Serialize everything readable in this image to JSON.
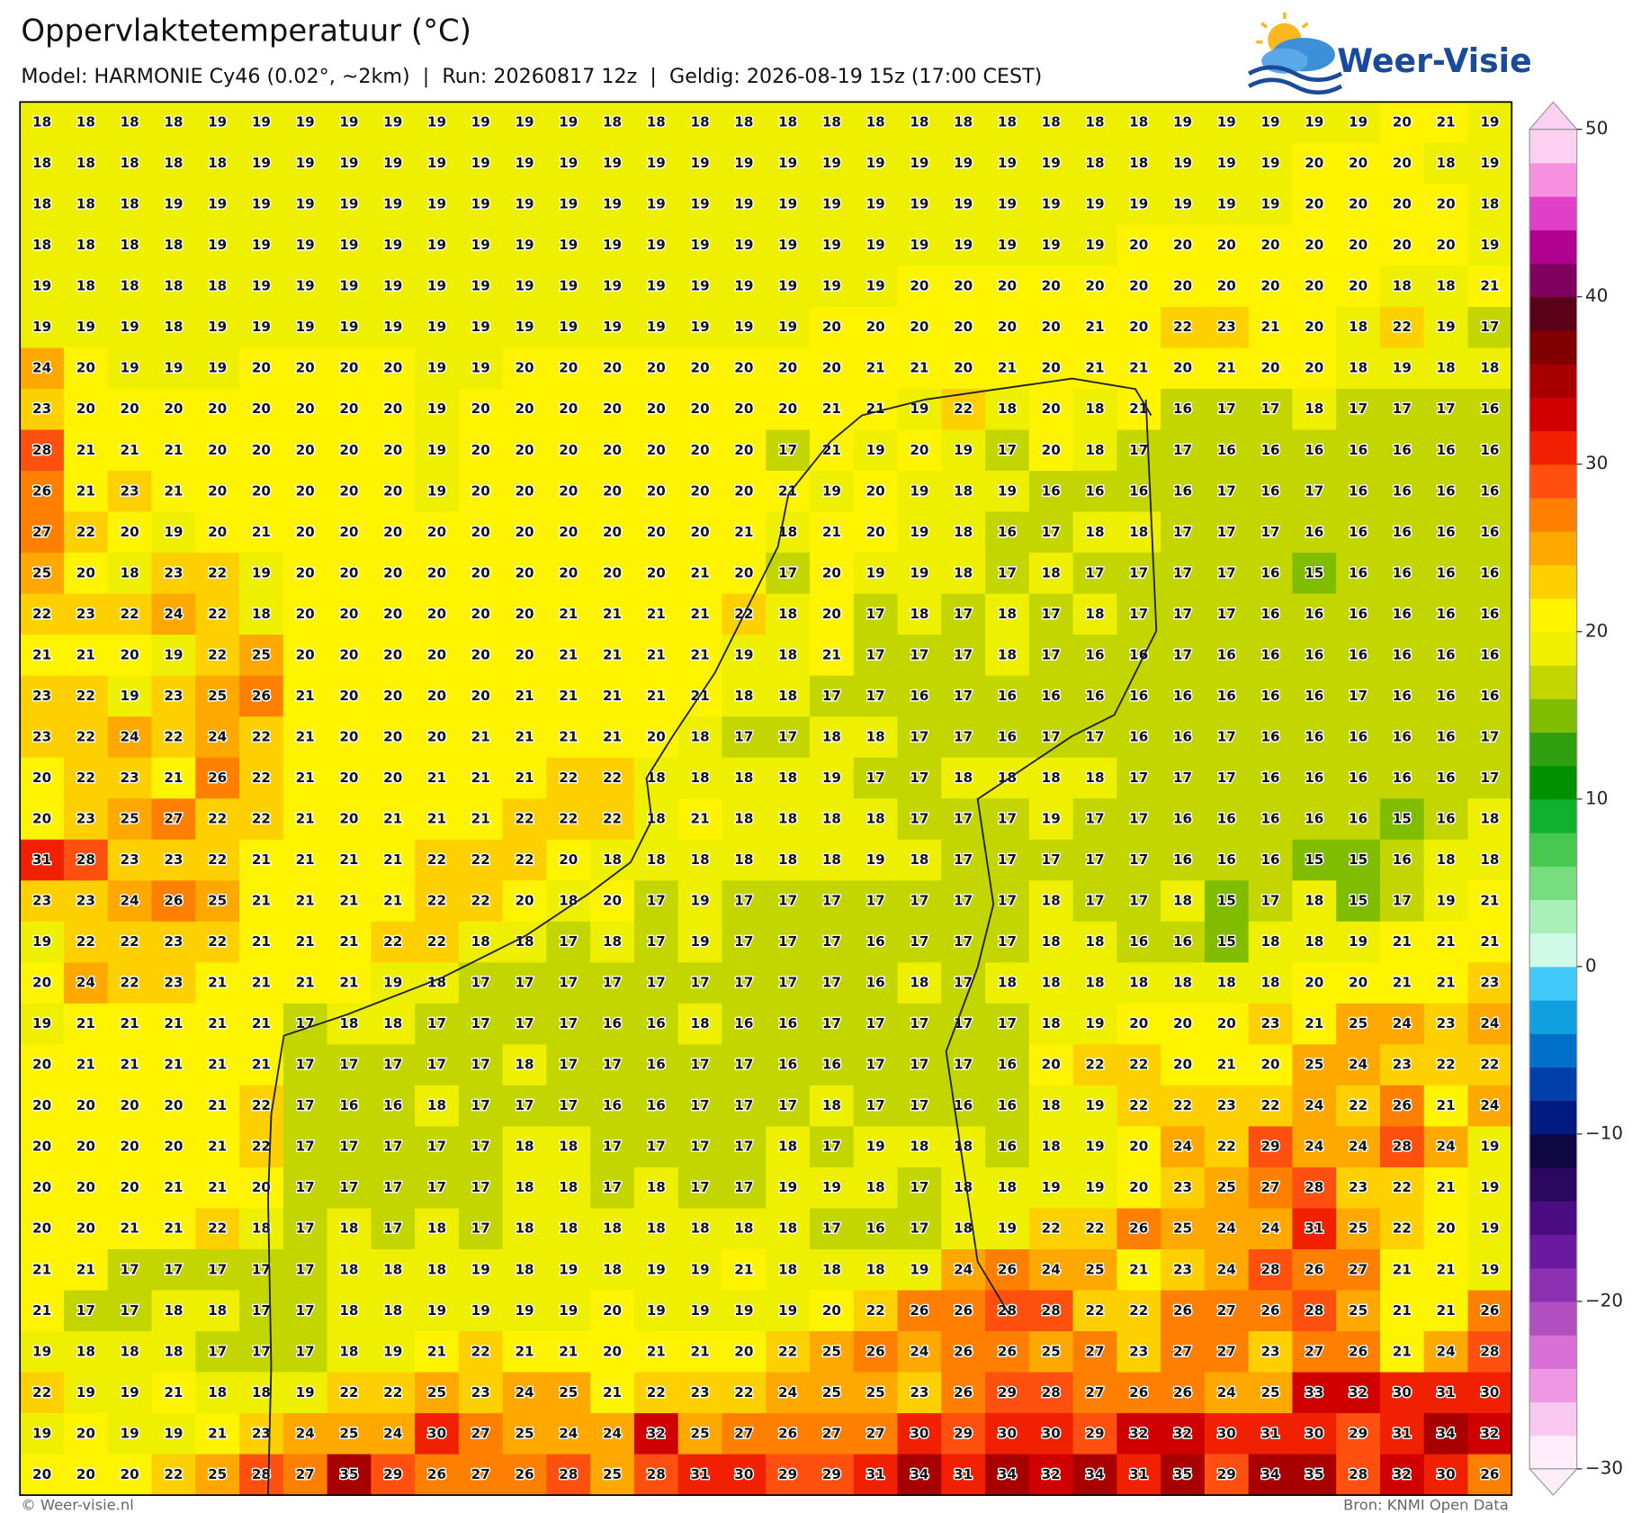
{
  "header": {
    "title": "Oppervlaktetemperatuur (°C)",
    "subtitle": "Model: HARMONIE Cy46 (0.02°, ~2km)  |  Run: 20260817 12z  |  Geldig: 2026-08-19 15z (17:00 CEST)",
    "logo": "Weer-Visie"
  },
  "grid": {
    "rows": [
      [
        18,
        18,
        18,
        18,
        19,
        19,
        19,
        19,
        19,
        19,
        19,
        19,
        19,
        18,
        18,
        18,
        18,
        18,
        18,
        18,
        18,
        18,
        18,
        18,
        18,
        18,
        19,
        19,
        19,
        19,
        19,
        20,
        21,
        19
      ],
      [
        18,
        18,
        18,
        18,
        18,
        19,
        19,
        19,
        19,
        19,
        19,
        19,
        19,
        19,
        19,
        19,
        19,
        19,
        19,
        19,
        19,
        19,
        19,
        19,
        18,
        18,
        19,
        19,
        19,
        20,
        20,
        20,
        18,
        19
      ],
      [
        18,
        18,
        18,
        19,
        19,
        19,
        19,
        19,
        19,
        19,
        19,
        19,
        19,
        19,
        19,
        19,
        19,
        19,
        19,
        19,
        19,
        19,
        19,
        19,
        19,
        19,
        19,
        19,
        19,
        20,
        20,
        20,
        20,
        18
      ],
      [
        18,
        18,
        18,
        18,
        19,
        19,
        19,
        19,
        19,
        19,
        19,
        19,
        19,
        19,
        19,
        19,
        19,
        19,
        19,
        19,
        19,
        19,
        19,
        19,
        19,
        20,
        20,
        20,
        20,
        20,
        20,
        20,
        20,
        19
      ],
      [
        19,
        18,
        18,
        18,
        18,
        19,
        19,
        19,
        19,
        19,
        19,
        19,
        19,
        19,
        19,
        19,
        19,
        19,
        19,
        19,
        20,
        20,
        20,
        20,
        20,
        20,
        20,
        20,
        20,
        20,
        20,
        18,
        18,
        21
      ],
      [
        19,
        19,
        19,
        18,
        19,
        19,
        19,
        19,
        19,
        19,
        19,
        19,
        19,
        19,
        19,
        19,
        19,
        19,
        20,
        20,
        20,
        20,
        20,
        20,
        21,
        20,
        22,
        23,
        21,
        20,
        18,
        22,
        19,
        17
      ],
      [
        24,
        20,
        19,
        19,
        19,
        20,
        20,
        20,
        20,
        19,
        19,
        20,
        20,
        20,
        20,
        20,
        20,
        20,
        20,
        21,
        21,
        20,
        21,
        20,
        21,
        21,
        20,
        21,
        20,
        20,
        18,
        19,
        18,
        18
      ],
      [
        23,
        20,
        20,
        20,
        20,
        20,
        20,
        20,
        20,
        19,
        20,
        20,
        20,
        20,
        20,
        20,
        20,
        20,
        21,
        21,
        19,
        22,
        18,
        20,
        18,
        21,
        16,
        17,
        17,
        18,
        17,
        17,
        17,
        16
      ],
      [
        28,
        21,
        21,
        21,
        20,
        20,
        20,
        20,
        20,
        19,
        20,
        20,
        20,
        20,
        20,
        20,
        20,
        17,
        21,
        19,
        20,
        19,
        17,
        20,
        18,
        17,
        17,
        16,
        16,
        16,
        16,
        16,
        16,
        16
      ],
      [
        26,
        21,
        23,
        21,
        20,
        20,
        20,
        20,
        20,
        19,
        20,
        20,
        20,
        20,
        20,
        20,
        20,
        21,
        19,
        20,
        19,
        18,
        19,
        16,
        16,
        16,
        16,
        17,
        16,
        17,
        16,
        16,
        16,
        16
      ],
      [
        27,
        22,
        20,
        19,
        20,
        21,
        20,
        20,
        20,
        20,
        20,
        20,
        20,
        20,
        20,
        20,
        21,
        18,
        21,
        20,
        19,
        18,
        16,
        17,
        18,
        18,
        17,
        17,
        17,
        16,
        16,
        16,
        16,
        16
      ],
      [
        25,
        20,
        18,
        23,
        22,
        19,
        20,
        20,
        20,
        20,
        20,
        20,
        20,
        20,
        20,
        21,
        20,
        17,
        20,
        19,
        19,
        18,
        17,
        18,
        17,
        17,
        17,
        17,
        16,
        15,
        16,
        16,
        16,
        16
      ],
      [
        22,
        23,
        22,
        24,
        22,
        18,
        20,
        20,
        20,
        20,
        20,
        20,
        21,
        21,
        21,
        21,
        22,
        18,
        20,
        17,
        18,
        17,
        18,
        17,
        18,
        17,
        17,
        17,
        16,
        16,
        16,
        16,
        16,
        16
      ],
      [
        21,
        21,
        20,
        19,
        22,
        25,
        20,
        20,
        20,
        20,
        20,
        20,
        21,
        21,
        21,
        21,
        19,
        18,
        21,
        17,
        17,
        17,
        18,
        17,
        16,
        16,
        17,
        16,
        16,
        16,
        16,
        16,
        16,
        16
      ],
      [
        23,
        22,
        19,
        23,
        25,
        26,
        21,
        20,
        20,
        20,
        20,
        21,
        21,
        21,
        21,
        21,
        18,
        18,
        17,
        17,
        16,
        17,
        16,
        16,
        16,
        16,
        16,
        16,
        16,
        16,
        17,
        16,
        16,
        16
      ],
      [
        23,
        22,
        24,
        22,
        24,
        22,
        21,
        20,
        20,
        20,
        21,
        21,
        21,
        21,
        20,
        18,
        17,
        17,
        18,
        18,
        17,
        17,
        16,
        17,
        17,
        16,
        16,
        17,
        16,
        16,
        16,
        16,
        16,
        17
      ],
      [
        20,
        22,
        23,
        21,
        26,
        22,
        21,
        20,
        20,
        21,
        21,
        21,
        22,
        22,
        18,
        18,
        18,
        18,
        19,
        17,
        17,
        18,
        18,
        18,
        18,
        17,
        17,
        17,
        16,
        16,
        16,
        16,
        16,
        17
      ],
      [
        20,
        23,
        25,
        27,
        22,
        22,
        21,
        20,
        21,
        21,
        21,
        22,
        22,
        22,
        18,
        21,
        18,
        18,
        18,
        18,
        17,
        17,
        17,
        19,
        17,
        17,
        16,
        16,
        16,
        16,
        16,
        15,
        16,
        18
      ],
      [
        31,
        28,
        23,
        23,
        22,
        21,
        21,
        21,
        21,
        22,
        22,
        22,
        20,
        18,
        18,
        18,
        18,
        18,
        18,
        19,
        18,
        17,
        17,
        17,
        17,
        17,
        16,
        16,
        16,
        15,
        15,
        16,
        18,
        18
      ],
      [
        23,
        23,
        24,
        26,
        25,
        21,
        21,
        21,
        21,
        22,
        22,
        20,
        18,
        20,
        17,
        19,
        17,
        17,
        17,
        17,
        17,
        17,
        17,
        18,
        17,
        17,
        18,
        15,
        17,
        18,
        15,
        17,
        19,
        21
      ],
      [
        19,
        22,
        22,
        23,
        22,
        21,
        21,
        21,
        22,
        22,
        18,
        18,
        17,
        18,
        17,
        19,
        17,
        17,
        17,
        16,
        17,
        17,
        17,
        18,
        18,
        16,
        16,
        15,
        18,
        18,
        19,
        21,
        21,
        21
      ],
      [
        20,
        24,
        22,
        23,
        21,
        21,
        21,
        21,
        19,
        18,
        17,
        17,
        17,
        17,
        17,
        17,
        17,
        17,
        17,
        16,
        18,
        17,
        18,
        18,
        18,
        18,
        18,
        18,
        18,
        20,
        20,
        21,
        21,
        23
      ],
      [
        19,
        21,
        21,
        21,
        21,
        21,
        17,
        18,
        18,
        17,
        17,
        17,
        17,
        16,
        16,
        18,
        16,
        16,
        17,
        17,
        17,
        17,
        17,
        18,
        19,
        20,
        20,
        20,
        23,
        21,
        25,
        24,
        23,
        24
      ],
      [
        20,
        21,
        21,
        21,
        21,
        21,
        17,
        17,
        17,
        17,
        17,
        18,
        17,
        17,
        16,
        17,
        17,
        16,
        16,
        17,
        17,
        17,
        16,
        20,
        22,
        22,
        20,
        21,
        20,
        25,
        24,
        23,
        22,
        22
      ],
      [
        20,
        20,
        20,
        20,
        21,
        22,
        17,
        16,
        16,
        18,
        17,
        17,
        17,
        16,
        16,
        17,
        17,
        17,
        18,
        17,
        17,
        16,
        16,
        18,
        19,
        22,
        22,
        23,
        22,
        24,
        22,
        26,
        21,
        24
      ],
      [
        20,
        20,
        20,
        20,
        21,
        22,
        17,
        17,
        17,
        17,
        17,
        18,
        18,
        17,
        17,
        17,
        17,
        18,
        17,
        19,
        18,
        18,
        16,
        18,
        19,
        20,
        24,
        22,
        29,
        24,
        24,
        28,
        24,
        19
      ],
      [
        20,
        20,
        20,
        21,
        21,
        20,
        17,
        17,
        17,
        17,
        17,
        18,
        18,
        17,
        18,
        17,
        17,
        19,
        19,
        18,
        17,
        18,
        18,
        19,
        19,
        20,
        23,
        25,
        27,
        28,
        23,
        22,
        21,
        19
      ],
      [
        20,
        20,
        21,
        21,
        22,
        18,
        17,
        18,
        17,
        18,
        17,
        18,
        18,
        18,
        18,
        18,
        18,
        18,
        17,
        16,
        17,
        18,
        19,
        22,
        22,
        26,
        25,
        24,
        24,
        31,
        25,
        22,
        20,
        19
      ],
      [
        21,
        21,
        17,
        17,
        17,
        17,
        17,
        18,
        18,
        18,
        19,
        18,
        19,
        18,
        19,
        19,
        21,
        18,
        18,
        18,
        19,
        24,
        26,
        24,
        25,
        21,
        23,
        24,
        28,
        26,
        27,
        21,
        21,
        19
      ],
      [
        21,
        17,
        17,
        18,
        18,
        17,
        17,
        18,
        18,
        19,
        19,
        19,
        19,
        20,
        19,
        19,
        19,
        19,
        20,
        22,
        26,
        26,
        28,
        28,
        22,
        22,
        26,
        27,
        26,
        28,
        25,
        21,
        21,
        26
      ],
      [
        19,
        18,
        18,
        18,
        17,
        17,
        17,
        18,
        19,
        21,
        22,
        21,
        21,
        20,
        21,
        21,
        20,
        22,
        25,
        26,
        24,
        26,
        26,
        25,
        27,
        23,
        27,
        27,
        23,
        27,
        26,
        21,
        24,
        28
      ],
      [
        22,
        19,
        19,
        21,
        18,
        18,
        19,
        22,
        22,
        25,
        23,
        24,
        25,
        21,
        22,
        23,
        22,
        24,
        25,
        25,
        23,
        26,
        29,
        28,
        27,
        26,
        26,
        24,
        25,
        33,
        32,
        30,
        31,
        30
      ],
      [
        19,
        20,
        19,
        19,
        21,
        23,
        24,
        25,
        24,
        30,
        27,
        25,
        24,
        24,
        32,
        25,
        27,
        26,
        27,
        27,
        30,
        29,
        30,
        30,
        29,
        32,
        32,
        30,
        31,
        30,
        29,
        31,
        34,
        32
      ],
      [
        20,
        20,
        20,
        22,
        25,
        28,
        27,
        35,
        29,
        26,
        27,
        26,
        28,
        25,
        28,
        31,
        30,
        29,
        29,
        31,
        34,
        31,
        34,
        32,
        34,
        31,
        35,
        29,
        34,
        35,
        28,
        32,
        30,
        26
      ]
    ]
  },
  "colorbar": {
    "lim": [
      -30,
      50
    ],
    "ticks": [
      50,
      40,
      30,
      20,
      10,
      0,
      {
        "value": -10,
        "label": "−10"
      },
      {
        "value": -20,
        "label": "−20"
      },
      {
        "value": -30,
        "label": "−30"
      }
    ],
    "colors": [
      "#fdeefa",
      "#f8c8f0",
      "#ee98e4",
      "#d870d8",
      "#b050c0",
      "#8a30b0",
      "#6a1aa0",
      "#4a0c80",
      "#2a0860",
      "#100840",
      "#001a80",
      "#0040a8",
      "#0070c8",
      "#10a0e0",
      "#40c8f8",
      "#d0fae8",
      "#a8f0b8",
      "#78dc80",
      "#48c850",
      "#10b030",
      "#009000",
      "#30a010",
      "#80bc00",
      "#c4d600",
      "#eef000",
      "#fff400",
      "#ffd000",
      "#ffa800",
      "#ff8000",
      "#ff5010",
      "#f02000",
      "#d00000",
      "#a80000",
      "#800000",
      "#5a0018",
      "#800060",
      "#b00090",
      "#e040c8",
      "#f890e0",
      "#fcd0f0"
    ]
  },
  "footer": {
    "left": "© Weer-visie.nl",
    "right": "Bron: KNMI Open Data"
  }
}
